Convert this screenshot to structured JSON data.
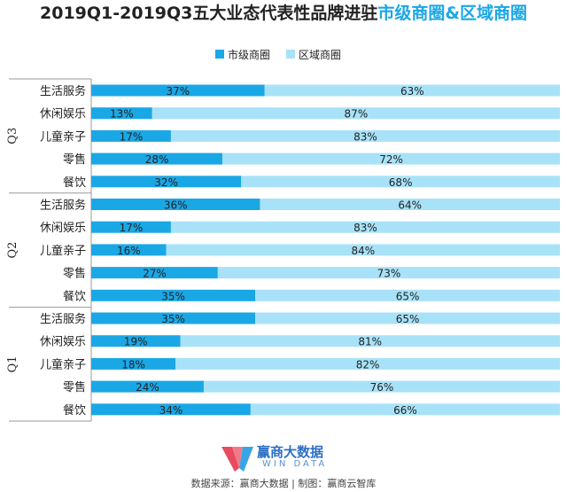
{
  "title": {
    "main": "2019Q1-2019Q3五大业态代表性品牌进驻",
    "highlight": "市级商圈&区域商圈"
  },
  "legend": [
    "市级商圈",
    "区域商圈"
  ],
  "colors": {
    "city": "#1aa7e6",
    "region": "#a8e2f8",
    "highlight": "#1aa7e6"
  },
  "chart_data": {
    "type": "bar",
    "stacked": true,
    "orientation": "horizontal",
    "xlim": [
      0,
      100
    ],
    "legend_position": "top",
    "groups": [
      {
        "quarter": "Q3",
        "categories": [
          "生活服务",
          "休闲娱乐",
          "儿童亲子",
          "零售",
          "餐饮"
        ]
      },
      {
        "quarter": "Q2",
        "categories": [
          "生活服务",
          "休闲娱乐",
          "儿童亲子",
          "零售",
          "餐饮"
        ]
      },
      {
        "quarter": "Q1",
        "categories": [
          "生活服务",
          "休闲娱乐",
          "儿童亲子",
          "零售",
          "餐饮"
        ]
      }
    ],
    "series": [
      {
        "name": "市级商圈",
        "values": [
          37,
          13,
          17,
          28,
          32,
          36,
          17,
          16,
          27,
          35,
          35,
          19,
          18,
          24,
          34
        ]
      },
      {
        "name": "区域商圈",
        "values": [
          63,
          87,
          83,
          72,
          68,
          64,
          83,
          84,
          73,
          65,
          65,
          81,
          82,
          76,
          66
        ]
      }
    ],
    "value_suffix": "%"
  },
  "logo": {
    "name": "赢商大数据",
    "sub": "WIN DATA"
  },
  "source": "数据来源：赢商大数据 | 制图：赢商云智库"
}
